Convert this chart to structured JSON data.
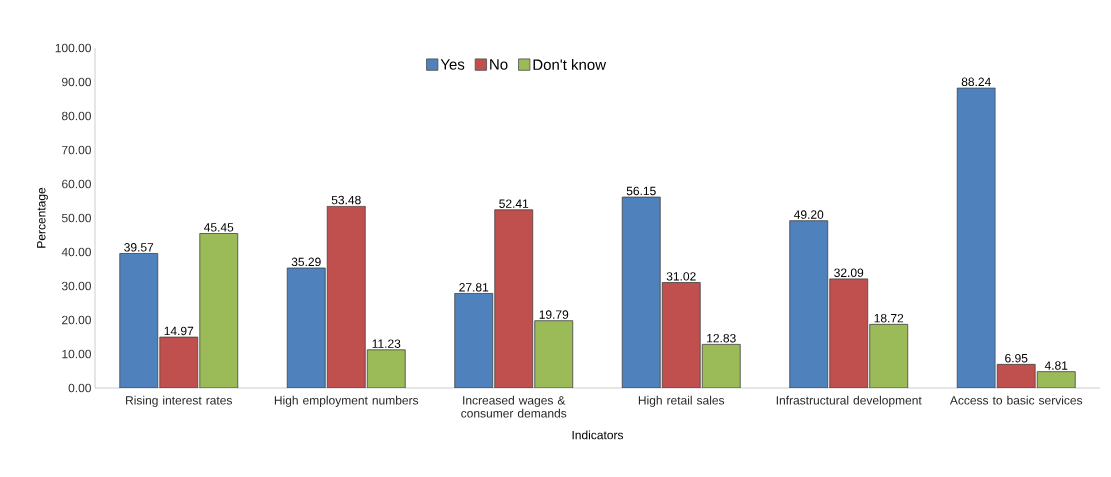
{
  "chart_data": {
    "type": "bar",
    "xlabel": "Indicators",
    "ylabel": "Percentage",
    "categories": [
      "Rising interest rates",
      "High employment numbers",
      "Increased wages & consumer demands",
      "High retail sales",
      "Infrastructural development",
      "Access to basic services"
    ],
    "series": [
      {
        "name": "Yes",
        "color": "#4f81bd",
        "values": [
          39.57,
          35.29,
          27.81,
          56.15,
          49.2,
          88.24
        ],
        "value_labels": [
          "39.57",
          "35.29",
          "27.81",
          "56.15",
          "49.20",
          "88.24"
        ]
      },
      {
        "name": "No",
        "color": "#c0504d",
        "values": [
          14.97,
          53.48,
          52.41,
          31.02,
          32.09,
          6.95
        ],
        "value_labels": [
          "14.97",
          "53.48",
          "52.41",
          "31.02",
          "32.09",
          "6.95"
        ]
      },
      {
        "name": "Don't know",
        "color": "#9bbb59",
        "values": [
          45.45,
          11.23,
          19.79,
          12.83,
          18.72,
          4.81
        ],
        "value_labels": [
          "45.45",
          "11.23",
          "19.79",
          "12.83",
          "18.72",
          "4.81"
        ]
      }
    ],
    "ylim": [
      0,
      100
    ],
    "yticks": [
      {
        "value": 0,
        "label": "0.00"
      },
      {
        "value": 10,
        "label": "10.00"
      },
      {
        "value": 20,
        "label": "20.00"
      },
      {
        "value": 30,
        "label": "30.00"
      },
      {
        "value": 40,
        "label": "40.00"
      },
      {
        "value": 50,
        "label": "50.00"
      },
      {
        "value": 60,
        "label": "60.00"
      },
      {
        "value": 70,
        "label": "70.00"
      },
      {
        "value": 80,
        "label": "80.00"
      },
      {
        "value": 90,
        "label": "90.00"
      },
      {
        "value": 100,
        "label": "100.00"
      }
    ],
    "grid": false,
    "legend": "top"
  }
}
